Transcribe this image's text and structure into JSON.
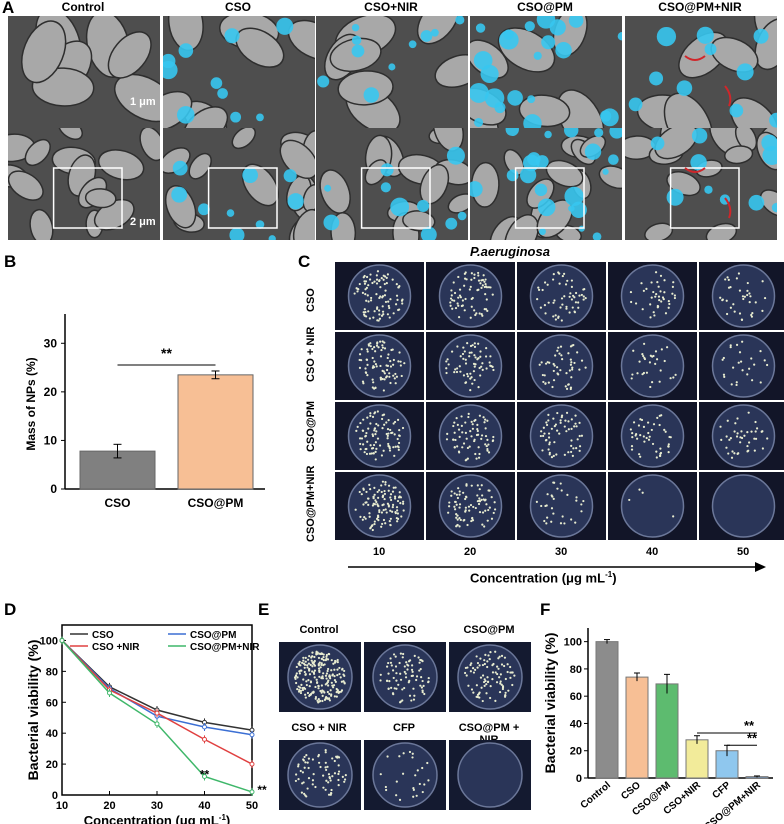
{
  "panels": {
    "A": {
      "letter": "A",
      "titles": [
        "Control",
        "CSO",
        "CSO+NIR",
        "CSO@PM",
        "CSO@PM+NIR"
      ],
      "scale_top": "1 μm",
      "scale_bottom": "2 μm"
    },
    "B": {
      "letter": "B",
      "chart_data": {
        "type": "bar",
        "categories": [
          "CSO",
          "CSO@PM"
        ],
        "values": [
          7.8,
          23.5
        ],
        "errors": [
          1.4,
          0.8
        ],
        "ylabel": "Mass of NPs (%)",
        "ylim": [
          0,
          35
        ],
        "yticks": [
          "0",
          "10",
          "20",
          "30"
        ],
        "significance": "**",
        "colors": [
          "#808080",
          "#f7bf95"
        ]
      }
    },
    "C": {
      "letter": "C",
      "title": "P.aeruginosa",
      "rows": [
        "CSO",
        "CSO + NIR",
        "CSO@PM",
        "CSO@PM+NIR"
      ],
      "cols": [
        "10",
        "20",
        "30",
        "40",
        "50"
      ],
      "xlabel": "Concentration (μg mL",
      "xlabel_sup": "-1",
      "xlabel_end": ")"
    },
    "D": {
      "letter": "D",
      "chart_data": {
        "type": "line",
        "x": [
          10,
          20,
          30,
          40,
          50
        ],
        "series": [
          {
            "name": "CSO",
            "values": [
              100,
              70,
              55,
              47,
              42
            ],
            "color": "#333333"
          },
          {
            "name": "CSO@PM",
            "values": [
              100,
              69,
              51,
              44,
              39
            ],
            "color": "#3b6fd4"
          },
          {
            "name": "CSO +NIR",
            "values": [
              100,
              68,
              53,
              36,
              20
            ],
            "color": "#e04040"
          },
          {
            "name": "CSO@PM+NIR",
            "values": [
              100,
              66,
              46,
              12,
              2
            ],
            "color": "#3fb76a"
          }
        ],
        "xlabel": "Concentration (μg mL",
        "xlabel_sup": "-1",
        "xlabel_end": ")",
        "ylabel": "Bacterial viability (%)",
        "xticks": [
          "10",
          "20",
          "30",
          "40",
          "50"
        ],
        "yticks": [
          "0",
          "20",
          "40",
          "60",
          "80",
          "100"
        ],
        "annotations": [
          "**",
          "**"
        ]
      }
    },
    "E": {
      "letter": "E",
      "labels": [
        "Control",
        "CSO",
        "CSO@PM",
        "CSO + NIR",
        "CFP",
        "CSO@PM + NIR"
      ]
    },
    "F": {
      "letter": "F",
      "chart_data": {
        "type": "bar",
        "categories": [
          "Control",
          "CSO",
          "CSO@PM",
          "CSO+NIR",
          "CFP",
          "CSO@PM+NIR"
        ],
        "values": [
          100,
          74,
          69,
          28,
          20,
          1
        ],
        "errors": [
          1.5,
          3,
          7,
          3,
          4,
          0.5
        ],
        "ylabel": "Bacterial viability (%)",
        "yticks": [
          "0",
          "20",
          "40",
          "60",
          "80",
          "100"
        ],
        "significance": [
          "**",
          "**"
        ],
        "colors": [
          "#8c8c8c",
          "#f7bf95",
          "#5dbb6f",
          "#f2eb9a",
          "#8fc7ee",
          "#6fa3e0"
        ]
      }
    }
  }
}
